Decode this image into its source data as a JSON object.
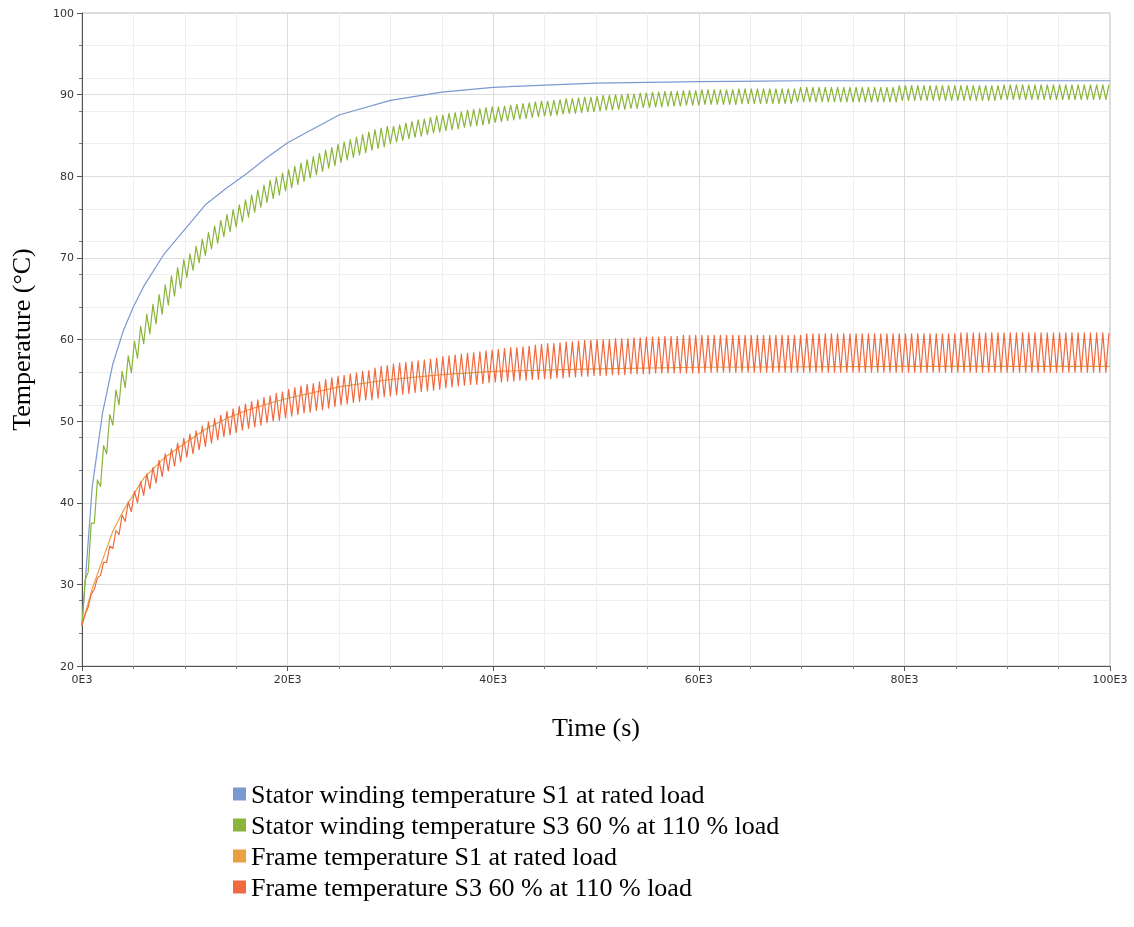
{
  "chart_data": {
    "type": "line",
    "xlabel": "Time (s)",
    "ylabel": "Temperature (°C)",
    "xlim": [
      0,
      100000
    ],
    "xticks": [
      {
        "value": 0,
        "label": "0E3"
      },
      {
        "value": 20000,
        "label": "20E3"
      },
      {
        "value": 40000,
        "label": "40E3"
      },
      {
        "value": 60000,
        "label": "60E3"
      },
      {
        "value": 80000,
        "label": "80E3"
      },
      {
        "value": 100000,
        "label": "100E3"
      }
    ],
    "ylim": [
      20,
      100
    ],
    "yticks": [
      20,
      30,
      40,
      50,
      60,
      70,
      80,
      90,
      100
    ],
    "grid": true,
    "legend": "bottom",
    "x": [
      0,
      300,
      600,
      900,
      1200,
      1500,
      1800,
      2100,
      2400,
      2700,
      3000,
      3300,
      3600,
      3900,
      4200,
      4500,
      4800,
      5100,
      5400,
      5700,
      6000,
      6300,
      6600,
      6900,
      7200,
      7500,
      7800,
      8100,
      8400,
      8700,
      9000,
      9300,
      9600,
      9900,
      10200,
      10500,
      10800,
      11100,
      11400,
      11700,
      12000,
      12300,
      12600,
      12900,
      13200,
      13500,
      13800,
      14100,
      14400,
      14700,
      15000,
      15300,
      15600,
      15900,
      16200,
      16500,
      16800,
      17100,
      17400,
      17700,
      18000,
      18300,
      18600,
      18900,
      19200,
      19500,
      19800,
      20100,
      20400,
      20700,
      21000,
      21300,
      21600,
      21900,
      22200,
      22500,
      22800,
      23100,
      23400,
      23700,
      24000,
      24300,
      24600,
      24900,
      25200,
      25500,
      25800,
      26100,
      26400,
      26700,
      27000,
      27300,
      27600,
      27900,
      28200,
      28500,
      28800,
      29100,
      29400,
      29700,
      30000,
      30300,
      30600,
      30900,
      31200,
      31500,
      31800,
      32100,
      32400,
      32700,
      33000,
      33300,
      33600,
      33900,
      34200,
      34500,
      34800,
      35100,
      35400,
      35700,
      36000,
      36300,
      36600,
      36900,
      37200,
      37500,
      37800,
      38100,
      38400,
      38700,
      39000,
      39300,
      39600,
      39900,
      40200,
      40500,
      40800,
      41100,
      41400,
      41700,
      42000,
      42300,
      42600,
      42900,
      43200,
      43500,
      43800,
      44100,
      44400,
      44700,
      45000,
      45300,
      45600,
      45900,
      46200,
      46500,
      46800,
      47100,
      47400,
      47700,
      48000,
      48300,
      48600,
      48900,
      49200,
      49500,
      49800,
      50100,
      50400,
      50700,
      51000,
      51300,
      51600,
      51900,
      52200,
      52500,
      52800,
      53100,
      53400,
      53700,
      54000,
      54300,
      54600,
      54900,
      55200,
      55500,
      55800,
      56100,
      56400,
      56700,
      57000,
      57300,
      57600,
      57900,
      58200,
      58500,
      58800,
      59100,
      59400,
      59700,
      60000,
      60300,
      60600,
      60900,
      61200,
      61500,
      61800,
      62100,
      62400,
      62700,
      63000,
      63300,
      63600,
      63900,
      64200,
      64500,
      64800,
      65100,
      65400,
      65700,
      66000,
      66300,
      66600,
      66900,
      67200,
      67500,
      67800,
      68100,
      68400,
      68700,
      69000,
      69300,
      69600,
      69900,
      70200,
      70500,
      70800,
      71100,
      71400,
      71700,
      72000,
      72300,
      72600,
      72900,
      73200,
      73500,
      73800,
      74100,
      74400,
      74700,
      75000,
      75300,
      75600,
      75900,
      76200,
      76500,
      76800,
      77100,
      77400,
      77700,
      78000,
      78300,
      78600,
      78900,
      79200,
      79500,
      79800,
      80100,
      80400,
      80700,
      81000,
      81300,
      81600,
      81900,
      82200,
      82500,
      82800,
      83100,
      83400,
      83700,
      84000,
      84300,
      84600,
      84900,
      85200,
      85500,
      85800,
      86100,
      86400,
      86700,
      87000,
      87300,
      87600,
      87900,
      88200,
      88500,
      88800,
      89100,
      89400,
      89700,
      90000,
      90300,
      90600,
      90900,
      91200,
      91500,
      91800,
      92100,
      92400,
      92700,
      93000,
      93300,
      93600,
      93900,
      94200,
      94500,
      94800,
      95100,
      95400,
      95700,
      96000,
      96300,
      96600,
      96900,
      97200,
      97500,
      97800,
      98100,
      98400,
      98700,
      99000,
      99300,
      99600,
      99900
    ],
    "series": [
      {
        "name": "Stator winding temperature S1 at rated load",
        "color": "#7a99d0",
        "x": [
          0,
          1000,
          2000,
          3000,
          4000,
          5000,
          6000,
          8000,
          10000,
          12000,
          14000,
          16000,
          18000,
          20000,
          25000,
          30000,
          35000,
          40000,
          50000,
          60000,
          70000,
          80000,
          100000
        ],
        "values": [
          25,
          42,
          51,
          57,
          61,
          64,
          66.5,
          70.5,
          73.5,
          76.5,
          78.5,
          80.3,
          82.3,
          84.1,
          87.5,
          89.3,
          90.3,
          90.9,
          91.4,
          91.6,
          91.7,
          91.7,
          91.7
        ]
      },
      {
        "name": "Stator winding temperature S3 60 % at 110 % load",
        "color": "#8ab53a",
        "values": [
          25,
          30.5,
          31.5,
          37.5,
          37.5,
          42.8,
          42,
          47,
          46,
          50.8,
          49.5,
          53.8,
          52,
          56.1,
          54.1,
          58,
          55.9,
          59.8,
          57.7,
          61.6,
          59.5,
          63.1,
          60.7,
          64.3,
          61.9,
          65.5,
          63.1,
          66.7,
          64.2,
          67.8,
          65.3,
          68.8,
          66.3,
          69.8,
          67.6,
          70.5,
          68.5,
          71.4,
          69.4,
          72.3,
          70.3,
          73.1,
          71.1,
          73.9,
          71.8,
          74.6,
          72.6,
          75.3,
          73.2,
          75.9,
          73.8,
          76.5,
          74.4,
          77.1,
          75,
          77.7,
          75.6,
          78.3,
          76.2,
          78.9,
          76.8,
          79.5,
          77.3,
          79.9,
          77.7,
          80.4,
          78.2,
          80.8,
          78.6,
          81.2,
          79,
          81.6,
          79.4,
          82,
          79.8,
          82.4,
          80.2,
          82.8,
          80.6,
          83.2,
          81,
          83.5,
          81.3,
          83.9,
          81.7,
          84.2,
          82,
          84.5,
          82.3,
          84.8,
          82.6,
          85.1,
          82.9,
          85.4,
          83.2,
          85.7,
          83.4,
          85.9,
          83.6,
          86.1,
          84,
          86.1,
          84.2,
          86.3,
          84.4,
          86.5,
          84.6,
          86.7,
          84.8,
          86.9,
          84.9,
          87,
          85.1,
          87.2,
          85.3,
          87.4,
          85.4,
          87.5,
          85.6,
          87.7,
          85.7,
          87.8,
          85.8,
          87.9,
          86,
          88.1,
          86.1,
          88.2,
          86.2,
          88.3,
          86.3,
          88.4,
          86.4,
          88.5,
          86.6,
          88.5,
          86.7,
          88.6,
          86.8,
          88.7,
          86.9,
          88.8,
          87,
          88.9,
          87.1,
          89,
          87.2,
          89.1,
          87.3,
          89.2,
          87.4,
          89.2,
          87.4,
          89.3,
          87.5,
          89.4,
          87.6,
          89.5,
          87.7,
          89.5,
          87.7,
          89.6,
          87.8,
          89.7,
          87.9,
          89.7,
          87.9,
          89.8,
          88,
          89.9,
          88.1,
          89.9,
          88.1,
          90,
          88.2,
          90,
          88.2,
          90.1,
          88.3,
          90.1,
          88.3,
          90.2,
          88.4,
          90.2,
          88.4,
          90.3,
          88.5,
          90.3,
          88.5,
          90.4,
          88.6,
          90.4,
          88.6,
          90.4,
          88.6,
          90.5,
          88.7,
          90.5,
          88.7,
          90.5,
          88.7,
          90.6,
          88.8,
          90.6,
          88.8,
          90.6,
          88.8,
          90.6,
          88.8,
          90.6,
          88.8,
          90.6,
          88.8,
          90.7,
          88.9,
          90.7,
          88.9,
          90.7,
          88.9,
          90.7,
          88.9,
          90.7,
          88.9,
          90.7,
          88.9,
          90.7,
          88.9,
          90.7,
          88.9,
          90.7,
          88.9,
          90.7,
          89.1,
          90.9,
          89.1,
          90.9,
          89.1,
          90.9,
          89.1,
          90.9,
          89.1,
          90.9,
          89.1,
          90.9,
          89.1,
          90.9,
          89.1,
          90.9,
          89.1,
          90.9,
          89.1,
          90.9,
          89.1,
          90.9,
          89.1,
          90.9,
          89.1,
          90.9,
          89.1,
          90.9,
          89.1,
          90.9,
          89.1,
          90.9,
          89.1,
          91.1,
          89.3,
          91.1,
          89.3,
          91.1,
          89.3,
          91.1,
          89.3,
          91.1,
          89.3,
          91.1,
          89.3,
          91.1,
          89.3,
          91.1,
          89.3,
          91.1,
          89.3,
          91.1,
          89.3,
          91.1,
          89.3,
          91.1,
          89.3,
          91.1,
          89.3,
          91.1,
          89.3,
          91.1,
          89.3,
          91.1,
          89.3,
          91.1,
          89.4,
          91.2,
          89.4,
          91.2,
          89.4,
          91.2,
          89.4,
          91.2,
          89.4,
          91.2,
          89.4,
          91.2,
          89.4,
          91.2,
          89.4,
          91.2,
          89.4,
          91.2,
          89.4,
          91.2,
          89.4,
          91.2,
          89.4,
          91.2,
          89.4,
          91.2,
          89.4,
          91.2,
          89.4,
          91.2,
          89.4,
          91.2,
          89.4,
          91.2,
          89.4,
          91.2
        ]
      },
      {
        "name": "Frame temperature S1 at rated load",
        "color": "#e8a040",
        "x": [
          0,
          1000,
          2000,
          3000,
          4000,
          5000,
          6000,
          8000,
          10000,
          12000,
          14000,
          16000,
          18000,
          20000,
          25000,
          30000,
          35000,
          40000,
          50000,
          60000,
          80000,
          100000
        ],
        "values": [
          25,
          29.5,
          33,
          36.5,
          39,
          41,
          43,
          45.5,
          47.3,
          49,
          50.3,
          51.3,
          52.1,
          52.8,
          54.2,
          55.1,
          55.7,
          56.1,
          56.4,
          56.6,
          56.7,
          56.7
        ]
      },
      {
        "name": "Frame temperature S3 60 % at 110 % load",
        "color": "#f06a40",
        "values": [
          25,
          26.3,
          27.2,
          28.8,
          29.4,
          30.8,
          31.1,
          32.7,
          32.7,
          34.7,
          34.4,
          36.6,
          36.1,
          38.5,
          37.7,
          40.1,
          38.9,
          41.4,
          40,
          42.6,
          40.9,
          43.5,
          41.7,
          44.3,
          42.4,
          45.2,
          43.2,
          46,
          43.9,
          46.6,
          44.5,
          47.3,
          45,
          47.9,
          45.6,
          48.4,
          46,
          48.8,
          46.5,
          49.4,
          46.9,
          49.9,
          47.3,
          50.3,
          47.7,
          50.7,
          48.1,
          51.2,
          48.3,
          51.5,
          48.6,
          51.8,
          48.9,
          52.1,
          49.1,
          52.4,
          49.3,
          52.6,
          49.5,
          52.9,
          49.8,
          53.1,
          50,
          53.4,
          50.1,
          53.6,
          50.4,
          53.9,
          50.6,
          54.1,
          50.8,
          54.3,
          51,
          54.5,
          51.1,
          54.6,
          51.3,
          54.8,
          51.4,
          55.1,
          51.6,
          55.3,
          51.8,
          55.5,
          52,
          55.6,
          52.1,
          55.8,
          52.3,
          55.9,
          52.4,
          56.1,
          52.6,
          56.2,
          52.6,
          56.5,
          52.8,
          56.7,
          53,
          56.8,
          53.1,
          57,
          53.2,
          57.1,
          53.3,
          57.2,
          53.4,
          57.3,
          53.5,
          57.4,
          53.6,
          57.5,
          53.7,
          57.6,
          53.8,
          57.7,
          53.9,
          57.9,
          54.1,
          58,
          54.2,
          58.1,
          54.3,
          58.2,
          54.4,
          58.3,
          54.5,
          58.4,
          54.5,
          58.5,
          54.6,
          58.6,
          54.7,
          58.7,
          54.8,
          58.8,
          54.8,
          58.9,
          54.9,
          59,
          54.9,
          59,
          55,
          59.1,
          55,
          59.2,
          55.1,
          59.3,
          55.1,
          59.4,
          55.2,
          59.5,
          55.2,
          59.5,
          55.3,
          59.6,
          55.3,
          59.7,
          55.4,
          59.7,
          55.4,
          59.8,
          55.5,
          59.9,
          55.5,
          59.9,
          55.6,
          60,
          55.6,
          60,
          55.6,
          60,
          55.7,
          60.1,
          55.7,
          60.1,
          55.7,
          60.1,
          55.8,
          60.2,
          55.8,
          60.2,
          55.8,
          60.3,
          55.8,
          60.3,
          55.9,
          60.3,
          55.9,
          60.4,
          55.9,
          60.4,
          55.9,
          60.4,
          55.9,
          60.5,
          55.9,
          60.5,
          55.9,
          60.5,
          55.9,
          60.5,
          56,
          60.5,
          56,
          60.5,
          56,
          60.5,
          56,
          60.5,
          56,
          60.5,
          56,
          60.5,
          56,
          60.5,
          56,
          60.5,
          56,
          60.5,
          56,
          60.5,
          56,
          60.5,
          56,
          60.5,
          56,
          60.5,
          56,
          60.5,
          56,
          60.5,
          56,
          60.5,
          56,
          60.7,
          56,
          60.7,
          56,
          60.7,
          56,
          60.7,
          56,
          60.7,
          56,
          60.7,
          56,
          60.7,
          56,
          60.7,
          56,
          60.7,
          56,
          60.7,
          56,
          60.7,
          56,
          60.7,
          56,
          60.7,
          56,
          60.7,
          56,
          60.7,
          56,
          60.7,
          56,
          60.7,
          56,
          60.7,
          56,
          60.7,
          56,
          60.7,
          56,
          60.7,
          56,
          60.7,
          56,
          60.7,
          56,
          60.7,
          56,
          60.7,
          56,
          60.8,
          56,
          60.8,
          56,
          60.8,
          56,
          60.8,
          56,
          60.8,
          56,
          60.8,
          56,
          60.8,
          56,
          60.8,
          56,
          60.8,
          56,
          60.8,
          56,
          60.8,
          56,
          60.8,
          56,
          60.8,
          56,
          60.8,
          56,
          60.8,
          56,
          60.8,
          56,
          60.8,
          56,
          60.8,
          56,
          60.8,
          56,
          60.8,
          56,
          60.8,
          56,
          60.8,
          56,
          60.8,
          56,
          60.8,
          56,
          60.8
        ]
      }
    ]
  }
}
